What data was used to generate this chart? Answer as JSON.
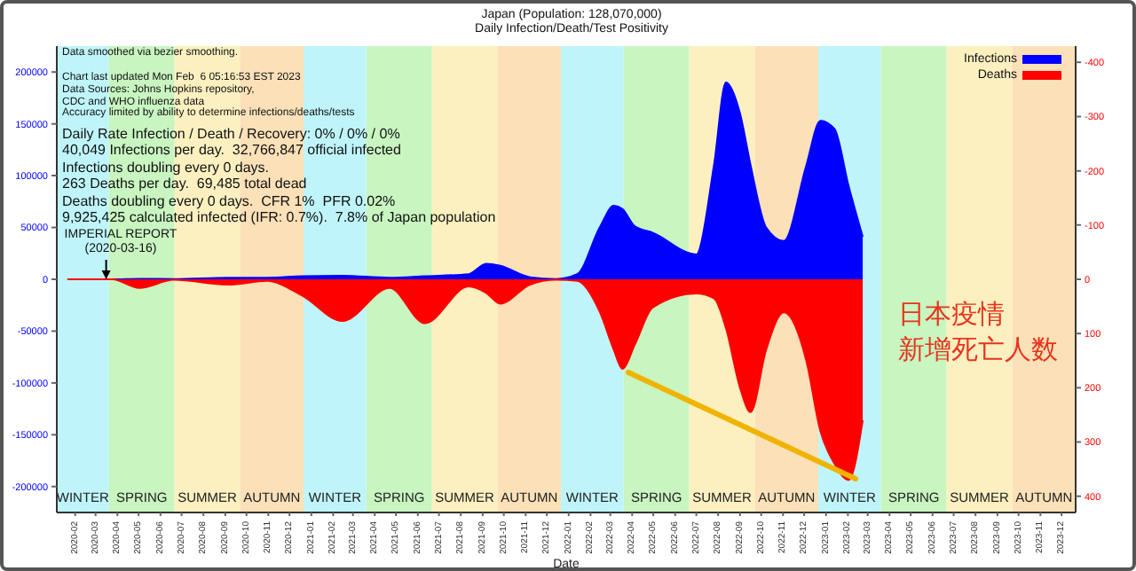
{
  "chart_data": {
    "type": "area",
    "title": "Japan (Population: 128,070,000)",
    "subtitle": "Daily Infection/Death/Test Positivity",
    "xlabel": "Date",
    "x": [
      "2020-01-21",
      "2020-03-25",
      "2020-05-02",
      "2020-06-20",
      "2020-09-05",
      "2020-10-30",
      "2020-12-19",
      "2021-02-14",
      "2021-04-22",
      "2021-06-11",
      "2021-08-12",
      "2021-09-06",
      "2021-09-26",
      "2021-11-07",
      "2021-12-14",
      "2022-01-13",
      "2022-02-14",
      "2022-03-06",
      "2022-03-18",
      "2022-04-05",
      "2022-04-30",
      "2022-07-01",
      "2022-07-26",
      "2022-08-12",
      "2022-09-01",
      "2022-09-16",
      "2022-10-08",
      "2022-11-02",
      "2022-12-04",
      "2022-12-24",
      "2023-01-13",
      "2023-02-02",
      "2023-02-22"
    ],
    "series": [
      {
        "name": "Infections",
        "color": "#0000ff",
        "values": [
          0,
          0,
          500,
          300,
          1500,
          1500,
          3000,
          3500,
          1500,
          3000,
          5000,
          15000,
          13000,
          2000,
          300,
          5000,
          50000,
          71000,
          68000,
          51000,
          45000,
          24000,
          110000,
          190000,
          160000,
          110000,
          50000,
          37000,
          110000,
          153000,
          145000,
          90000,
          41000
        ]
      },
      {
        "name": "Deaths",
        "color": "#ff0000",
        "axis": "y2",
        "values": [
          0,
          0,
          16,
          1,
          10,
          3,
          30,
          77,
          16,
          81,
          13,
          25,
          45,
          10,
          1,
          3,
          60,
          130,
          165,
          120,
          52,
          26,
          35,
          90,
          200,
          245,
          130,
          61,
          150,
          280,
          340,
          370,
          260
        ]
      }
    ],
    "xlim": [
      "2020-01-06",
      "2023-12-21"
    ],
    "ylim": [
      -225000,
      225000
    ],
    "yticks": [
      -200000,
      -150000,
      -100000,
      -50000,
      0,
      50000,
      100000,
      150000,
      200000
    ],
    "y2lim": [
      430,
      -430
    ],
    "y2ticks": [
      -400,
      -300,
      -200,
      -100,
      0,
      100,
      200,
      300,
      400
    ],
    "xticks": [
      "2020-02",
      "2020-03",
      "2020-04",
      "2020-05",
      "2020-06",
      "2020-07",
      "2020-08",
      "2020-09",
      "2020-10",
      "2020-11",
      "2020-12",
      "2021-01",
      "2021-02",
      "2021-03",
      "2021-04",
      "2021-05",
      "2021-06",
      "2021-07",
      "2021-08",
      "2021-09",
      "2021-10",
      "2021-11",
      "2021-12",
      "2022-01",
      "2022-02",
      "2022-03",
      "2022-04",
      "2022-05",
      "2022-06",
      "2022-07",
      "2022-08",
      "2022-09",
      "2022-10",
      "2022-11",
      "2022-12",
      "2023-01",
      "2023-02",
      "2023-03",
      "2023-04",
      "2023-05",
      "2023-06",
      "2023-07",
      "2023-08",
      "2023-09",
      "2023-10",
      "2023-11",
      "2023-12"
    ],
    "legend": "top right",
    "bands": [
      {
        "axis": "x",
        "from": "2019-12-21",
        "to": "2020-03-20",
        "label": "WINTER",
        "color": "#bff5fa"
      },
      {
        "axis": "x",
        "from": "2020-03-20",
        "to": "2020-06-21",
        "label": "SPRING",
        "color": "#c8f5c0"
      },
      {
        "axis": "x",
        "from": "2020-06-21",
        "to": "2020-09-22",
        "label": "SUMMER",
        "color": "#fdf0c0"
      },
      {
        "axis": "x",
        "from": "2020-09-22",
        "to": "2020-12-21",
        "label": "AUTUMN",
        "color": "#fbe0b8"
      },
      {
        "axis": "x",
        "from": "2020-12-21",
        "to": "2021-03-20",
        "label": "WINTER",
        "color": "#bff5fa"
      },
      {
        "axis": "x",
        "from": "2021-03-20",
        "to": "2021-06-21",
        "label": "SPRING",
        "color": "#c8f5c0"
      },
      {
        "axis": "x",
        "from": "2021-06-21",
        "to": "2021-09-22",
        "label": "SUMMER",
        "color": "#fdf0c0"
      },
      {
        "axis": "x",
        "from": "2021-09-22",
        "to": "2021-12-21",
        "label": "AUTUMN",
        "color": "#fbe0b8"
      },
      {
        "axis": "x",
        "from": "2021-12-21",
        "to": "2022-03-20",
        "label": "WINTER",
        "color": "#bff5fa"
      },
      {
        "axis": "x",
        "from": "2022-03-20",
        "to": "2022-06-21",
        "label": "SPRING",
        "color": "#c8f5c0"
      },
      {
        "axis": "x",
        "from": "2022-06-21",
        "to": "2022-09-22",
        "label": "SUMMER",
        "color": "#fdf0c0"
      },
      {
        "axis": "x",
        "from": "2022-09-22",
        "to": "2022-12-21",
        "label": "AUTUMN",
        "color": "#fbe0b8"
      },
      {
        "axis": "x",
        "from": "2022-12-21",
        "to": "2023-03-20",
        "label": "WINTER",
        "color": "#bff5fa"
      },
      {
        "axis": "x",
        "from": "2023-03-20",
        "to": "2023-06-21",
        "label": "SPRING",
        "color": "#c8f5c0"
      },
      {
        "axis": "x",
        "from": "2023-06-21",
        "to": "2023-09-22",
        "label": "SUMMER",
        "color": "#fdf0c0"
      },
      {
        "axis": "x",
        "from": "2023-09-22",
        "to": "2023-12-21",
        "label": "AUTUMN",
        "color": "#fbe0b8"
      }
    ],
    "annotations": [
      "Data smoothed via bezier smoothing.\n\nChart last updated Mon Feb  6 05:16:53 EST 2023\nData Sources: Johns Hopkins repository,\nCDC and WHO influenza data\nAccuracy limited by ability to determine infections/deaths/tests",
      "Daily Rate Infection / Death / Recovery: 0% / 0% / 0%\n40,049 Infections per day.  32,766,847 official infected\nInfections doubling every 0 days.\n263 Deaths per day.  69,485 total dead\nDeaths doubling every 0 days.  CFR 1%  PFR 0.02%\n9,925,425 calculated infected (IFR: 0.7%).  7.8% of Japan population",
      {
        "text": "IMPERIAL REPORT\n(2020-03-16)",
        "x": "2020-03-16",
        "y": 0
      },
      "日本疫情",
      "新增死亡人数"
    ]
  }
}
